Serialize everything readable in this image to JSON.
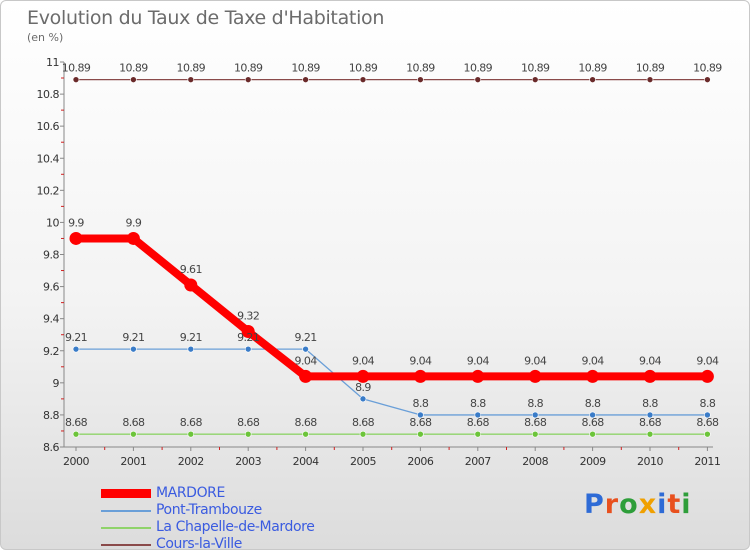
{
  "header": {
    "title": "Evolution du Taux de Taxe d'Habitation",
    "subtitle": "(en %)"
  },
  "brand": {
    "name": "Proxiti",
    "letter_colors": [
      "#2e6bd6",
      "#e8501e",
      "#2e9e3a",
      "#f0a000",
      "#2e6bd6",
      "#e8501e",
      "#2e9e3a"
    ]
  },
  "chart_data": {
    "type": "line",
    "title": "Evolution du Taux de Taxe d'Habitation",
    "subtitle": "(en %)",
    "xlabel": "",
    "ylabel": "",
    "x": [
      "2000",
      "2001",
      "2002",
      "2003",
      "2004",
      "2005",
      "2006",
      "2007",
      "2008",
      "2009",
      "2010",
      "2011"
    ],
    "ylim": [
      8.6,
      11
    ],
    "yticks": [
      "8.6",
      "8.8",
      "9",
      "9.2",
      "9.4",
      "9.6",
      "9.8",
      "10",
      "10.2",
      "10.4",
      "10.6",
      "10.8",
      "11"
    ],
    "grid": false,
    "legend_position": "bottom-left",
    "series": [
      {
        "name": "MARDORE",
        "color": "#ff0000",
        "values": [
          9.9,
          9.9,
          9.61,
          9.32,
          9.04,
          9.04,
          9.04,
          9.04,
          9.04,
          9.04,
          9.04,
          9.04
        ],
        "labels": [
          "9.9",
          "9.9",
          "9.61",
          "9.32",
          "9.04",
          "9.04",
          "9.04",
          "9.04",
          "9.04",
          "9.04",
          "9.04",
          "9.04"
        ]
      },
      {
        "name": "Pont-Trambouze",
        "color": "#6a9fd8",
        "values": [
          9.21,
          9.21,
          9.21,
          9.21,
          9.21,
          8.9,
          8.8,
          8.8,
          8.8,
          8.8,
          8.8,
          8.8
        ],
        "labels": [
          "9.21",
          "9.21",
          "9.21",
          "9.21",
          "9.21",
          "8.9",
          "8.8",
          "8.8",
          "8.8",
          "8.8",
          "8.8",
          "8.8"
        ]
      },
      {
        "name": "La Chapelle-de-Mardore",
        "color": "#8fd36a",
        "values": [
          8.68,
          8.68,
          8.68,
          8.68,
          8.68,
          8.68,
          8.68,
          8.68,
          8.68,
          8.68,
          8.68,
          8.68
        ],
        "labels": [
          "8.68",
          "8.68",
          "8.68",
          "8.68",
          "8.68",
          "8.68",
          "8.68",
          "8.68",
          "8.68",
          "8.68",
          "8.68",
          "8.68"
        ]
      },
      {
        "name": "Cours-la-Ville",
        "color": "#8a4a4a",
        "values": [
          10.89,
          10.89,
          10.89,
          10.89,
          10.89,
          10.89,
          10.89,
          10.89,
          10.89,
          10.89,
          10.89,
          10.89
        ],
        "labels": [
          "10.89",
          "10.89",
          "10.89",
          "10.89",
          "10.89",
          "10.89",
          "10.89",
          "10.89",
          "10.89",
          "10.89",
          "10.89",
          "10.89"
        ]
      }
    ]
  }
}
